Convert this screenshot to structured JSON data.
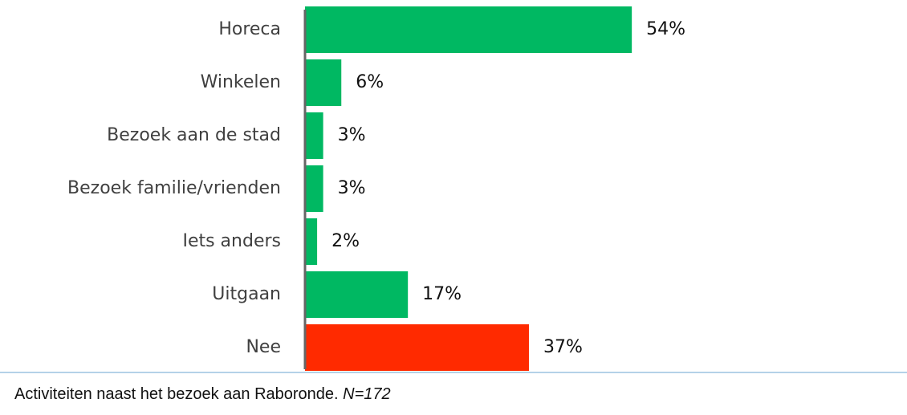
{
  "chart_data": {
    "type": "barh",
    "categories": [
      "Horeca",
      "Winkelen",
      "Bezoek aan de stad",
      "Bezoek familie/vrienden",
      "Iets anders",
      "Uitgaan",
      "Nee"
    ],
    "values": [
      54,
      6,
      3,
      3,
      2,
      17,
      37
    ],
    "value_labels": [
      "54%",
      "6%",
      "3%",
      "3%",
      "2%",
      "17%",
      "37%"
    ],
    "colors": [
      "#00b862",
      "#00b862",
      "#00b862",
      "#00b862",
      "#00b862",
      "#00b862",
      "#ff2a00"
    ],
    "caption": "Activiteiten naast het bezoek aan Raboronde.",
    "caption_note": "N=172"
  }
}
